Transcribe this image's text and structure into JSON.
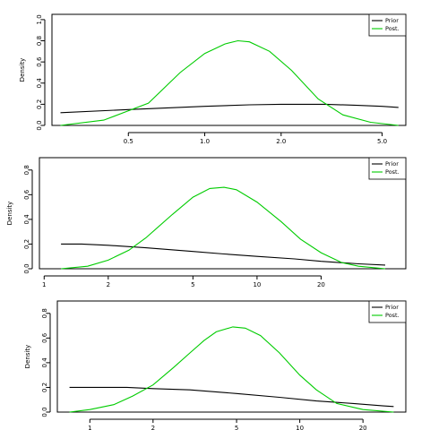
{
  "chart_data": [
    {
      "type": "line",
      "title": "",
      "xlabel": "",
      "ylabel": "Density",
      "x_scale": "log",
      "xlim": [
        0.25,
        6.2
      ],
      "ylim": [
        0,
        1.05
      ],
      "x_ticks": [
        0.5,
        1.0,
        2.0,
        5.0
      ],
      "x_tick_labels": [
        "0.5",
        "1.0",
        "2.0",
        "5.0"
      ],
      "y_ticks": [
        0,
        0.2,
        0.4,
        0.6,
        0.8,
        1.0
      ],
      "y_tick_labels": [
        "0.0",
        "0.2",
        "0.4",
        "0.6",
        "0.8",
        "1.0"
      ],
      "legend": {
        "position": "top-right",
        "entries": [
          "Prior",
          "Post."
        ]
      },
      "series": [
        {
          "name": "Prior",
          "color": "#000000",
          "x": [
            0.27,
            0.5,
            1.0,
            1.5,
            2.0,
            3.0,
            4.0,
            5.0,
            5.8
          ],
          "y": [
            0.12,
            0.15,
            0.18,
            0.195,
            0.2,
            0.2,
            0.19,
            0.18,
            0.17
          ]
        },
        {
          "name": "Post.",
          "color": "#00cc00",
          "x": [
            0.27,
            0.4,
            0.6,
            0.8,
            1.0,
            1.2,
            1.35,
            1.5,
            1.8,
            2.2,
            2.8,
            3.5,
            4.5,
            5.8
          ],
          "y": [
            0.0,
            0.05,
            0.21,
            0.5,
            0.68,
            0.77,
            0.8,
            0.79,
            0.7,
            0.52,
            0.25,
            0.1,
            0.03,
            0.0
          ]
        }
      ]
    },
    {
      "type": "line",
      "title": "",
      "xlabel": "",
      "ylabel": "Density",
      "x_scale": "log",
      "xlim": [
        0.95,
        50
      ],
      "ylim": [
        0,
        0.9
      ],
      "x_ticks": [
        1,
        2,
        5,
        10,
        20
      ],
      "x_tick_labels": [
        "1",
        "2",
        "5",
        "10",
        "20"
      ],
      "y_ticks": [
        0,
        0.2,
        0.4,
        0.6,
        0.8
      ],
      "y_tick_labels": [
        "0.0",
        "0.2",
        "0.4",
        "0.6",
        "0.8"
      ],
      "legend": {
        "position": "top-right",
        "entries": [
          "Prior",
          "Post."
        ]
      },
      "series": [
        {
          "name": "Prior",
          "color": "#000000",
          "x": [
            1.2,
            1.5,
            2.0,
            3.0,
            5.0,
            7.0,
            10.0,
            15.0,
            20.0,
            30.0,
            40.0
          ],
          "y": [
            0.2,
            0.2,
            0.19,
            0.17,
            0.14,
            0.12,
            0.1,
            0.08,
            0.06,
            0.04,
            0.03
          ]
        },
        {
          "name": "Post.",
          "color": "#00cc00",
          "x": [
            1.2,
            1.6,
            2.0,
            2.5,
            3.0,
            4.0,
            5.0,
            6.0,
            7.0,
            8.0,
            10.0,
            13.0,
            16.0,
            20.0,
            25.0,
            30.0,
            40.0
          ],
          "y": [
            0.0,
            0.02,
            0.07,
            0.15,
            0.25,
            0.44,
            0.58,
            0.65,
            0.66,
            0.64,
            0.54,
            0.38,
            0.24,
            0.13,
            0.05,
            0.02,
            0.0
          ]
        }
      ]
    },
    {
      "type": "line",
      "title": "",
      "xlabel": "",
      "ylabel": "Density",
      "x_scale": "log",
      "xlim": [
        0.7,
        32
      ],
      "ylim": [
        0,
        0.9
      ],
      "x_ticks": [
        1,
        2,
        5,
        10,
        20
      ],
      "x_tick_labels": [
        "1",
        "2",
        "5",
        "10",
        "20"
      ],
      "y_ticks": [
        0,
        0.2,
        0.4,
        0.6,
        0.8
      ],
      "y_tick_labels": [
        "0.0",
        "0.2",
        "0.4",
        "0.6",
        "0.8"
      ],
      "legend": {
        "position": "top-right",
        "entries": [
          "Prior",
          "Post."
        ]
      },
      "series": [
        {
          "name": "Prior",
          "color": "#000000",
          "x": [
            0.8,
            1.0,
            1.5,
            2.0,
            3.0,
            5.0,
            8.0,
            12.0,
            18.0,
            25.0,
            28.0
          ],
          "y": [
            0.2,
            0.2,
            0.2,
            0.19,
            0.18,
            0.15,
            0.12,
            0.09,
            0.07,
            0.05,
            0.045
          ]
        },
        {
          "name": "Post.",
          "color": "#00cc00",
          "x": [
            0.8,
            1.0,
            1.3,
            1.6,
            2.0,
            2.5,
            3.0,
            3.5,
            4.0,
            4.8,
            5.5,
            6.5,
            8.0,
            10.0,
            12.0,
            15.0,
            20.0,
            28.0
          ],
          "y": [
            0.0,
            0.02,
            0.06,
            0.13,
            0.22,
            0.36,
            0.48,
            0.58,
            0.65,
            0.69,
            0.68,
            0.62,
            0.48,
            0.3,
            0.18,
            0.07,
            0.02,
            0.0
          ]
        }
      ]
    }
  ]
}
